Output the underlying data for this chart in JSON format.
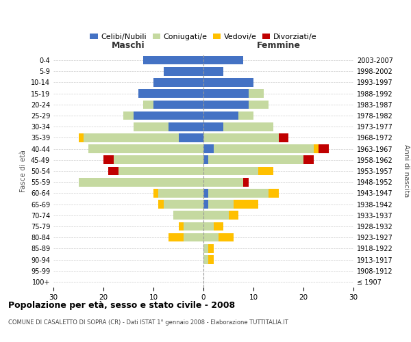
{
  "age_groups": [
    "100+",
    "95-99",
    "90-94",
    "85-89",
    "80-84",
    "75-79",
    "70-74",
    "65-69",
    "60-64",
    "55-59",
    "50-54",
    "45-49",
    "40-44",
    "35-39",
    "30-34",
    "25-29",
    "20-24",
    "15-19",
    "10-14",
    "5-9",
    "0-4"
  ],
  "birth_years": [
    "≤ 1907",
    "1908-1912",
    "1913-1917",
    "1918-1922",
    "1923-1927",
    "1928-1932",
    "1933-1937",
    "1938-1942",
    "1943-1947",
    "1948-1952",
    "1953-1957",
    "1958-1962",
    "1963-1967",
    "1968-1972",
    "1973-1977",
    "1978-1982",
    "1983-1987",
    "1988-1992",
    "1993-1997",
    "1998-2002",
    "2003-2007"
  ],
  "male": {
    "celibi": [
      0,
      0,
      0,
      0,
      0,
      0,
      0,
      0,
      0,
      0,
      0,
      0,
      0,
      5,
      7,
      14,
      10,
      13,
      10,
      8,
      12
    ],
    "coniugati": [
      0,
      0,
      0,
      0,
      4,
      4,
      6,
      8,
      9,
      25,
      17,
      18,
      23,
      19,
      7,
      2,
      2,
      0,
      0,
      0,
      0
    ],
    "vedovi": [
      0,
      0,
      0,
      0,
      3,
      1,
      0,
      1,
      1,
      0,
      0,
      0,
      0,
      1,
      0,
      0,
      0,
      0,
      0,
      0,
      0
    ],
    "divorziati": [
      0,
      0,
      0,
      0,
      0,
      0,
      0,
      0,
      0,
      0,
      2,
      2,
      0,
      0,
      0,
      0,
      0,
      0,
      0,
      0,
      0
    ]
  },
  "female": {
    "nubili": [
      0,
      0,
      0,
      0,
      0,
      0,
      0,
      1,
      1,
      0,
      0,
      1,
      2,
      0,
      4,
      7,
      9,
      9,
      10,
      4,
      8
    ],
    "coniugate": [
      0,
      0,
      1,
      1,
      3,
      2,
      5,
      5,
      12,
      8,
      11,
      19,
      20,
      15,
      10,
      3,
      4,
      3,
      0,
      0,
      0
    ],
    "vedove": [
      0,
      0,
      1,
      1,
      3,
      2,
      2,
      5,
      2,
      0,
      3,
      0,
      1,
      0,
      0,
      0,
      0,
      0,
      0,
      0,
      0
    ],
    "divorziate": [
      0,
      0,
      0,
      0,
      0,
      0,
      0,
      0,
      0,
      1,
      0,
      2,
      2,
      2,
      0,
      0,
      0,
      0,
      0,
      0,
      0
    ]
  },
  "colors": {
    "celibi_nubili": "#4472c4",
    "coniugati": "#c5d9a0",
    "vedovi": "#ffc000",
    "divorziati": "#c00000"
  },
  "xlim": 30,
  "title": "Popolazione per età, sesso e stato civile - 2008",
  "subtitle": "COMUNE DI CASALETTO DI SOPRA (CR) - Dati ISTAT 1° gennaio 2008 - Elaborazione TUTTITALIA.IT",
  "ylabel_left": "Fasce di età",
  "ylabel_right": "Anni di nascita",
  "xlabel_left": "Maschi",
  "xlabel_right": "Femmine",
  "legend_labels": [
    "Celibi/Nubili",
    "Coniugati/e",
    "Vedovi/e",
    "Divorziati/e"
  ],
  "background_color": "#ffffff",
  "grid_color": "#cccccc"
}
